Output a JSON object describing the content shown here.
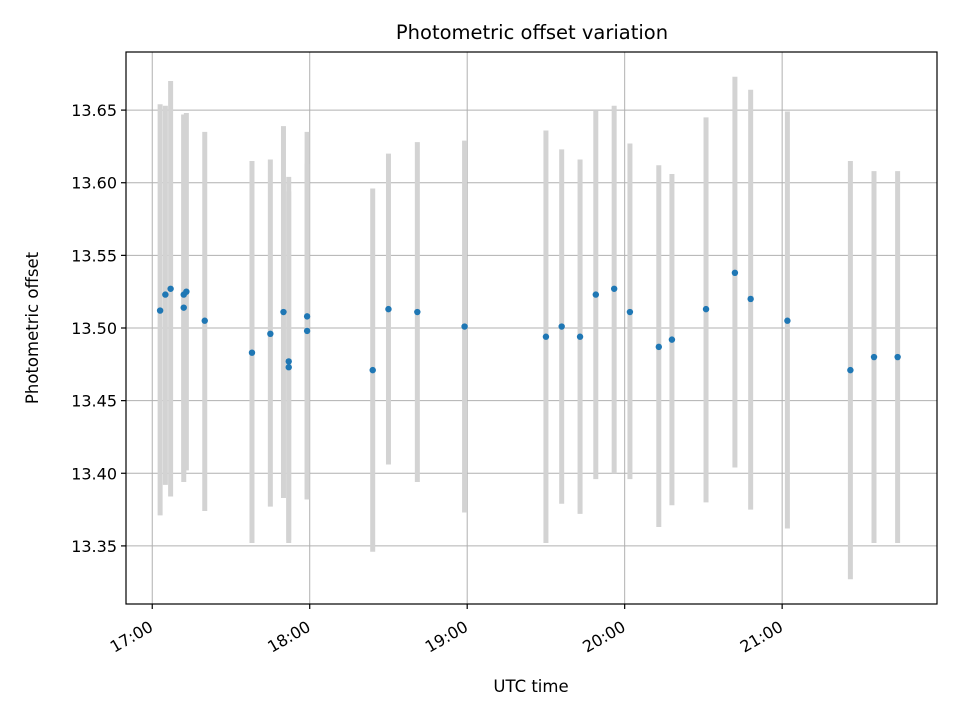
{
  "chart_data": {
    "type": "scatter",
    "title": "Photometric offset variation",
    "xlabel": "UTC time",
    "ylabel": "Photometric offset",
    "x_unit": "time of day (UTC)",
    "xlim": [
      "16:50",
      "21:59"
    ],
    "ylim": [
      13.31,
      13.69
    ],
    "x_ticks": [
      "17:00",
      "18:00",
      "19:00",
      "20:00",
      "21:00"
    ],
    "y_ticks": [
      "13.35",
      "13.40",
      "13.45",
      "13.50",
      "13.55",
      "13.60",
      "13.65"
    ],
    "grid": true,
    "legend": "none",
    "colors": {
      "point": "#1f77b4",
      "errorbar": "#d3d3d3",
      "grid": "#b0b0b0"
    },
    "series": [
      {
        "points": [
          {
            "x": "17:03",
            "y": 13.512,
            "ylow": 13.371,
            "yhigh": 13.654
          },
          {
            "x": "17:05",
            "y": 13.523,
            "ylow": 13.392,
            "yhigh": 13.653
          },
          {
            "x": "17:07",
            "y": 13.527,
            "ylow": 13.384,
            "yhigh": 13.67
          },
          {
            "x": "17:12",
            "y": 13.523,
            "ylow": 13.4,
            "yhigh": 13.647
          },
          {
            "x": "17:12",
            "y": 13.514,
            "ylow": 13.394,
            "yhigh": 13.647
          },
          {
            "x": "17:13",
            "y": 13.525,
            "ylow": 13.402,
            "yhigh": 13.648
          },
          {
            "x": "17:20",
            "y": 13.505,
            "ylow": 13.374,
            "yhigh": 13.635
          },
          {
            "x": "17:38",
            "y": 13.483,
            "ylow": 13.352,
            "yhigh": 13.615
          },
          {
            "x": "17:45",
            "y": 13.496,
            "ylow": 13.377,
            "yhigh": 13.616
          },
          {
            "x": "17:50",
            "y": 13.511,
            "ylow": 13.383,
            "yhigh": 13.639
          },
          {
            "x": "17:52",
            "y": 13.473,
            "ylow": 13.354,
            "yhigh": 13.594
          },
          {
            "x": "17:52",
            "y": 13.477,
            "ylow": 13.352,
            "yhigh": 13.604
          },
          {
            "x": "17:59",
            "y": 13.508,
            "ylow": 13.382,
            "yhigh": 13.635
          },
          {
            "x": "17:59",
            "y": 13.498,
            "ylow": 13.382,
            "yhigh": 13.613
          },
          {
            "x": "18:24",
            "y": 13.471,
            "ylow": 13.346,
            "yhigh": 13.596
          },
          {
            "x": "18:30",
            "y": 13.513,
            "ylow": 13.406,
            "yhigh": 13.62
          },
          {
            "x": "18:41",
            "y": 13.511,
            "ylow": 13.394,
            "yhigh": 13.628
          },
          {
            "x": "18:59",
            "y": 13.501,
            "ylow": 13.373,
            "yhigh": 13.629
          },
          {
            "x": "19:30",
            "y": 13.494,
            "ylow": 13.352,
            "yhigh": 13.636
          },
          {
            "x": "19:36",
            "y": 13.501,
            "ylow": 13.379,
            "yhigh": 13.623
          },
          {
            "x": "19:43",
            "y": 13.494,
            "ylow": 13.372,
            "yhigh": 13.616
          },
          {
            "x": "19:49",
            "y": 13.523,
            "ylow": 13.396,
            "yhigh": 13.65
          },
          {
            "x": "19:56",
            "y": 13.527,
            "ylow": 13.4,
            "yhigh": 13.653
          },
          {
            "x": "20:02",
            "y": 13.511,
            "ylow": 13.396,
            "yhigh": 13.627
          },
          {
            "x": "20:13",
            "y": 13.487,
            "ylow": 13.363,
            "yhigh": 13.612
          },
          {
            "x": "20:18",
            "y": 13.492,
            "ylow": 13.378,
            "yhigh": 13.606
          },
          {
            "x": "20:31",
            "y": 13.513,
            "ylow": 13.38,
            "yhigh": 13.645
          },
          {
            "x": "20:42",
            "y": 13.538,
            "ylow": 13.404,
            "yhigh": 13.673
          },
          {
            "x": "20:48",
            "y": 13.52,
            "ylow": 13.375,
            "yhigh": 13.664
          },
          {
            "x": "21:02",
            "y": 13.505,
            "ylow": 13.362,
            "yhigh": 13.649
          },
          {
            "x": "21:26",
            "y": 13.471,
            "ylow": 13.327,
            "yhigh": 13.615
          },
          {
            "x": "21:35",
            "y": 13.48,
            "ylow": 13.352,
            "yhigh": 13.608
          },
          {
            "x": "21:44",
            "y": 13.48,
            "ylow": 13.352,
            "yhigh": 13.608
          }
        ]
      }
    ]
  }
}
